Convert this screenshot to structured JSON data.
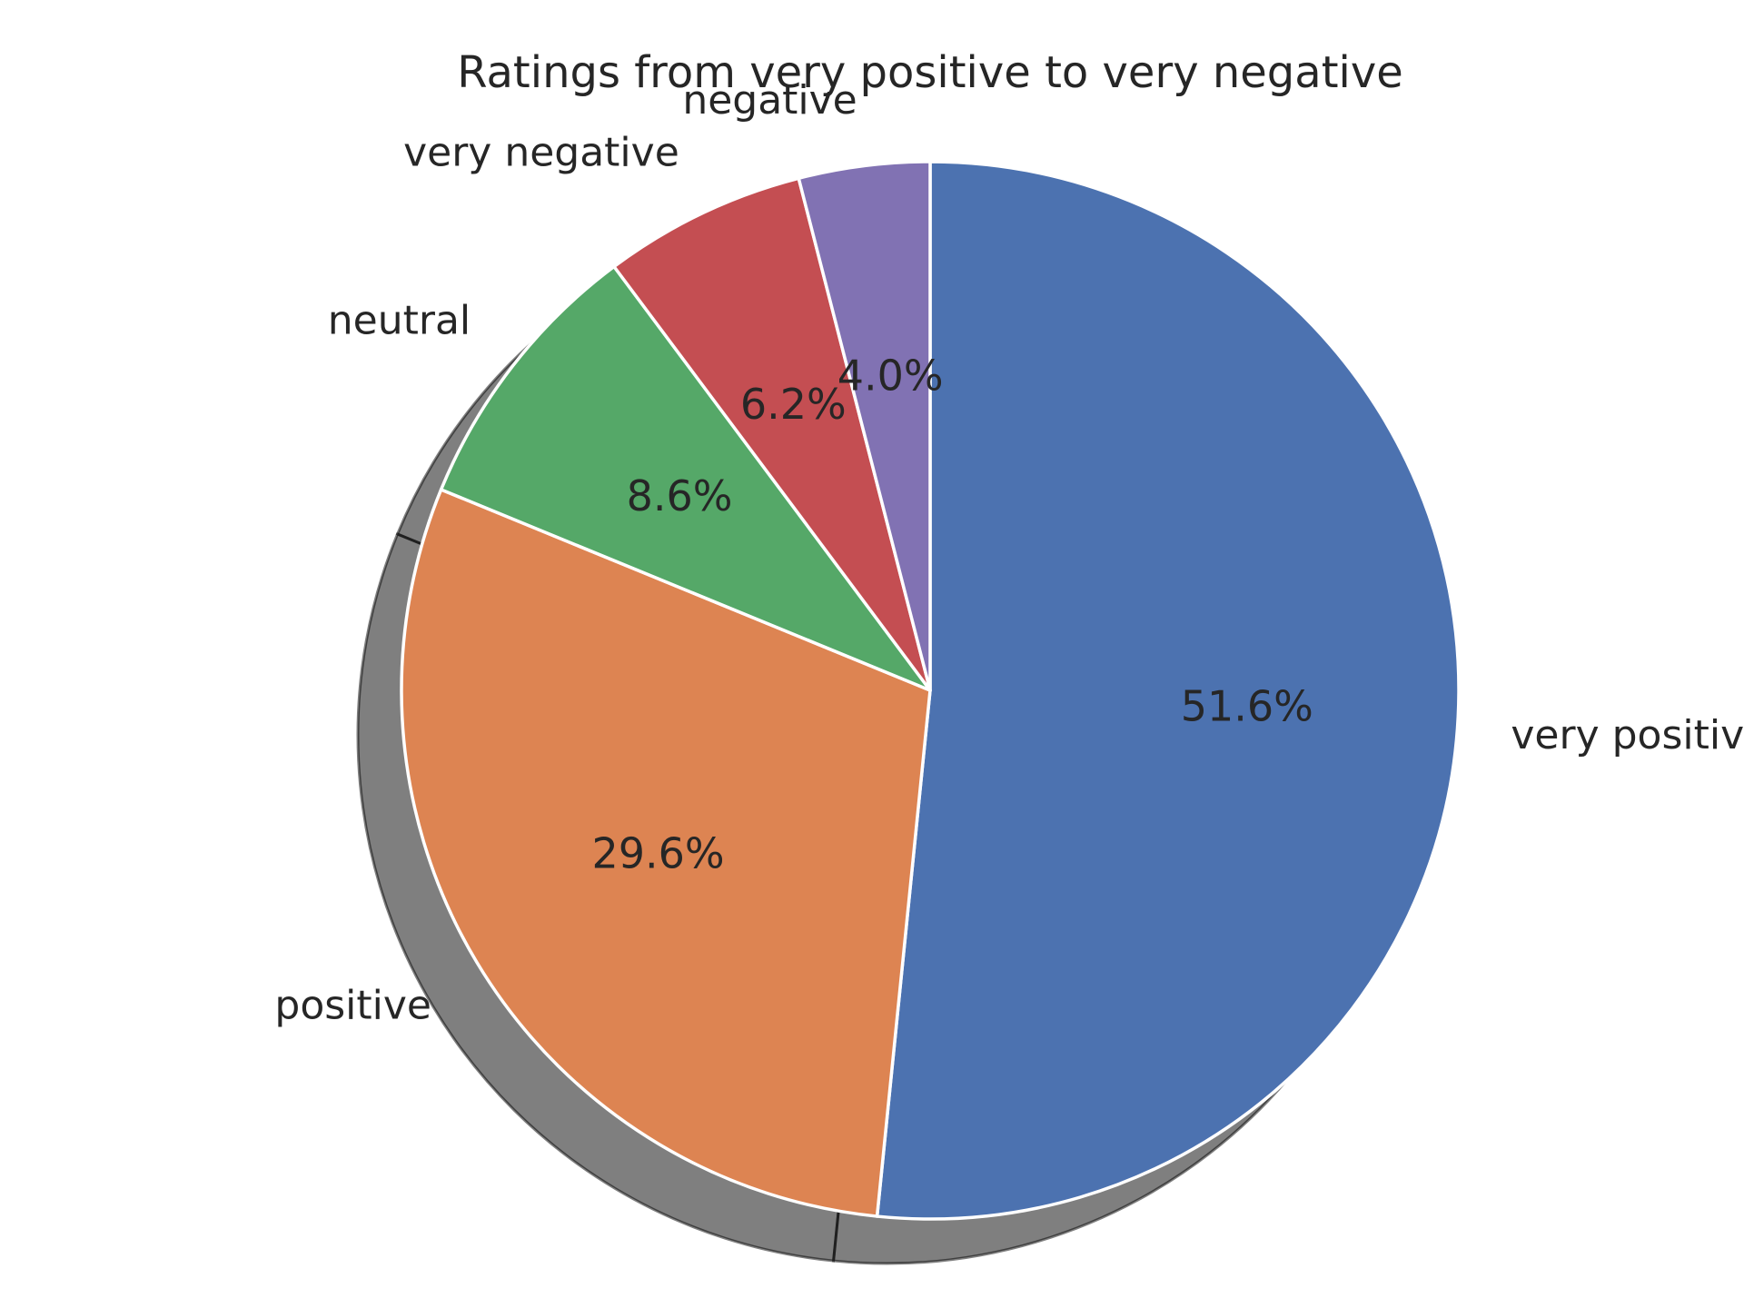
{
  "chart_data": {
    "type": "pie",
    "title": "Ratings from very positive to very negative",
    "categories": [
      "very positive",
      "positive",
      "neutral",
      "very negative",
      "negative"
    ],
    "values": [
      51.6,
      29.6,
      8.6,
      6.2,
      4.0
    ],
    "value_labels": [
      "51.6%",
      "29.6%",
      "8.6%",
      "6.2%",
      "4.0%"
    ],
    "colors": [
      "#4c72b0",
      "#dd8452",
      "#55a868",
      "#c44e52",
      "#8172b3"
    ],
    "start_angle_deg": 90,
    "direction": "clockwise",
    "shadow": true,
    "legend": "none"
  }
}
